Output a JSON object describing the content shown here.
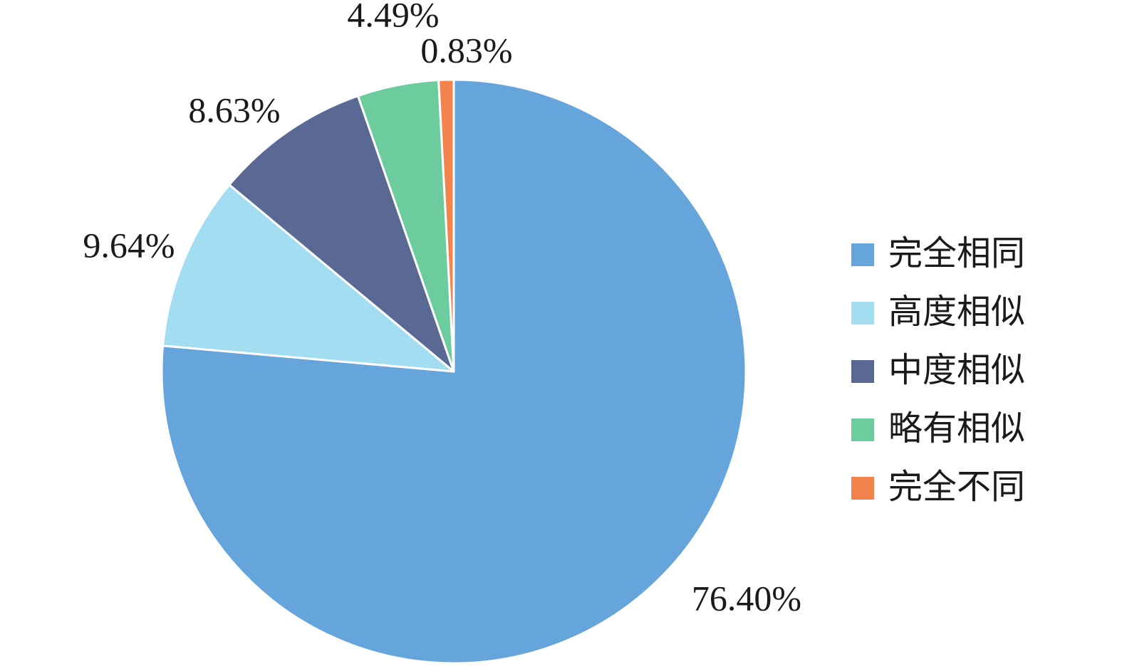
{
  "chart_data": {
    "type": "pie",
    "title": "",
    "legend_position": "right",
    "start_angle": "12 o'clock",
    "direction": "clockwise",
    "slices": [
      {
        "name": "完全相同",
        "value": 76.4,
        "label": "76.40%",
        "color": "#66a5dc"
      },
      {
        "name": "高度相似",
        "value": 9.64,
        "label": "9.64%",
        "color": "#a2ddf2"
      },
      {
        "name": "中度相似",
        "value": 8.63,
        "label": "8.63%",
        "color": "#5a6994"
      },
      {
        "name": "略有相似",
        "value": 4.49,
        "label": "4.49%",
        "color": "#6dcc9d"
      },
      {
        "name": "完全不同",
        "value": 0.83,
        "label": "0.83%",
        "color": "#f3834d"
      }
    ]
  }
}
